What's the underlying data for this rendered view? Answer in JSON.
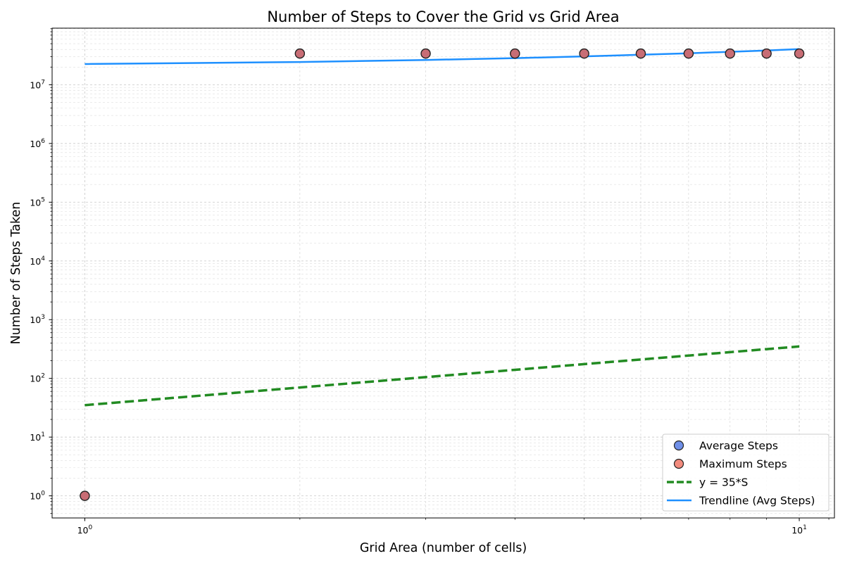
{
  "chart_data": {
    "type": "scatter",
    "title": "Number of Steps to Cover the Grid vs Grid Area",
    "xlabel": "Grid Area (number of cells)",
    "ylabel": "Number of Steps Taken",
    "xscale": "log",
    "yscale": "log",
    "xlim": [
      0.9,
      11.2
    ],
    "ylim": [
      0.42,
      92000000
    ],
    "grid": true,
    "legend_position": "lower-right",
    "x_ticks": [
      {
        "base": "10",
        "exp": "0",
        "value": 1
      },
      {
        "base": "10",
        "exp": "1",
        "value": 10
      }
    ],
    "y_ticks": [
      {
        "base": "10",
        "exp": "0",
        "value": 1
      },
      {
        "base": "10",
        "exp": "1",
        "value": 10
      },
      {
        "base": "10",
        "exp": "2",
        "value": 100
      },
      {
        "base": "10",
        "exp": "3",
        "value": 1000
      },
      {
        "base": "10",
        "exp": "4",
        "value": 10000
      },
      {
        "base": "10",
        "exp": "5",
        "value": 100000
      },
      {
        "base": "10",
        "exp": "6",
        "value": 1000000
      },
      {
        "base": "10",
        "exp": "7",
        "value": 10000000
      }
    ],
    "series": [
      {
        "name": "Average Steps",
        "kind": "scatter",
        "color": "#6f8fe8",
        "x": [
          1,
          2,
          3,
          4,
          5,
          6,
          7,
          8,
          9,
          10
        ],
        "y": [
          1,
          34000000,
          34000000,
          34000000,
          34000000,
          34000000,
          34000000,
          34000000,
          34000000,
          34000000
        ]
      },
      {
        "name": "Maximum Steps",
        "kind": "scatter",
        "color": "#f28b7d",
        "x": [
          1,
          2,
          3,
          4,
          5,
          6,
          7,
          8,
          9,
          10
        ],
        "y": [
          1,
          34000000,
          34000000,
          34000000,
          34000000,
          34000000,
          34000000,
          34000000,
          34000000,
          34000000
        ]
      },
      {
        "name": "y = 35*S",
        "kind": "line",
        "style": "dashed",
        "color": "#228b22",
        "x": [
          1,
          2,
          3,
          4,
          5,
          6,
          7,
          8,
          9,
          10
        ],
        "y": [
          35,
          70,
          105,
          140,
          175,
          210,
          245,
          280,
          315,
          350
        ]
      },
      {
        "name": "Trendline (Avg Steps)",
        "kind": "line",
        "style": "solid",
        "color": "#1e90ff",
        "x": [
          1,
          2,
          3,
          4,
          5,
          6,
          7,
          8,
          9,
          10
        ],
        "y": [
          22500000,
          24400000,
          26400000,
          28400000,
          30400000,
          32400000,
          34400000,
          36400000,
          38400000,
          40400000
        ]
      }
    ],
    "overlap_color": "#cf6a6a"
  }
}
